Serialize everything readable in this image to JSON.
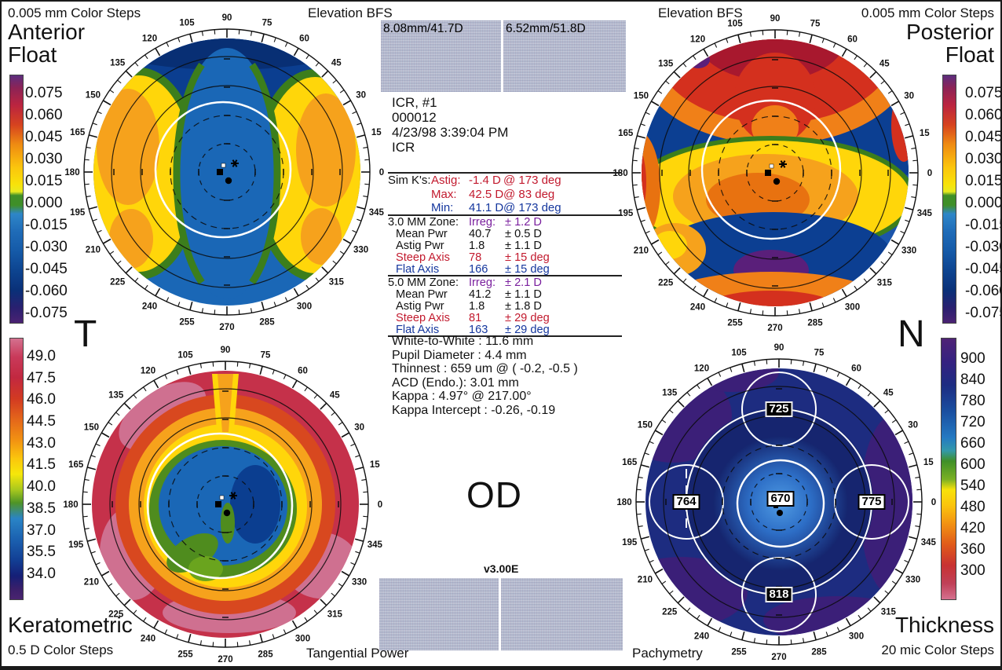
{
  "report": {
    "eye": "OD",
    "version": "v3.00E",
    "patient": [
      "ICR, #1",
      "000012",
      "4/23/98 3:39:04 PM",
      "ICR"
    ]
  },
  "quadrants": {
    "anterior": {
      "steps": "0.005 mm Color Steps",
      "title1": "Anterior",
      "title2": "Float",
      "map_label": "Elevation BFS",
      "side_letter": "T"
    },
    "posterior": {
      "steps": "0.005 mm Color Steps",
      "title1": "Posterior",
      "title2": "Float",
      "map_label": "Elevation BFS",
      "side_letter": "N"
    },
    "keratometric": {
      "title": "Keratometric",
      "steps": "0.5 D Color Steps",
      "map_label": "Tangential Power"
    },
    "thickness": {
      "title": "Thickness",
      "steps": "20 mic Color Steps",
      "map_label": "Pachymetry"
    }
  },
  "bfs": {
    "left": "8.08mm/41.7D",
    "right": "6.52mm/51.8D"
  },
  "scales": {
    "elevation": [
      "0.075",
      "0.060",
      "0.045",
      "0.030",
      "0.015",
      "0.000",
      "-0.015",
      "-0.030",
      "-0.045",
      "-0.060",
      "-0.075"
    ],
    "keratometric": [
      "49.0",
      "47.5",
      "46.0",
      "44.5",
      "43.0",
      "41.5",
      "40.0",
      "38.5",
      "37.0",
      "35.5",
      "34.0"
    ],
    "thickness": [
      "900",
      "840",
      "780",
      "720",
      "660",
      "600",
      "540",
      "480",
      "420",
      "360",
      "300"
    ]
  },
  "stats": {
    "irreg_label": "Irreg:",
    "simk": [
      {
        "a": "Sim K's:",
        "b": "Astig:",
        "v": "-1.4 D",
        "d": "@ 173 deg",
        "cls": "red"
      },
      {
        "a": "",
        "b": "Max:",
        "v": "42.5 D",
        "d": "@ 83 deg",
        "cls": "red"
      },
      {
        "a": "",
        "b": "Min:",
        "v": "41.1 D",
        "d": "@ 173 deg",
        "cls": "blue"
      }
    ],
    "zones": [
      {
        "title": "3.0 MM Zone:",
        "irreg": "± 1.2 D",
        "rows": [
          {
            "l": "Mean Pwr",
            "v": "40.7",
            "t": "± 0.5 D",
            "cls": "black"
          },
          {
            "l": "Astig Pwr",
            "v": "1.8",
            "t": "± 1.1 D",
            "cls": "black"
          },
          {
            "l": "Steep Axis",
            "v": "78",
            "t": "± 15 deg",
            "cls": "red"
          },
          {
            "l": "Flat Axis",
            "v": "166",
            "t": "± 15 deg",
            "cls": "blue"
          }
        ]
      },
      {
        "title": "5.0 MM Zone:",
        "irreg": "± 2.1 D",
        "rows": [
          {
            "l": "Mean Pwr",
            "v": "41.2",
            "t": "± 1.1 D",
            "cls": "black"
          },
          {
            "l": "Astig Pwr",
            "v": "1.8",
            "t": "± 1.8 D",
            "cls": "black"
          },
          {
            "l": "Steep Axis",
            "v": "81",
            "t": "± 29 deg",
            "cls": "red"
          },
          {
            "l": "Flat Axis",
            "v": "163",
            "t": "± 29 deg",
            "cls": "blue"
          }
        ]
      }
    ],
    "info": [
      "White-to-White : 11.6 mm",
      "Pupil Diameter :  4.4 mm",
      "Thinnest : 659 um @ ( -0.2, -0.5 )",
      "ACD (Endo.): 3.01 mm",
      "Kappa : 4.97° @ 217.00°",
      "Kappa Intercept : -0.26, -0.19"
    ]
  },
  "pachymetry_values": {
    "top": "725",
    "left": "764",
    "center": "670",
    "right": "775",
    "bottom": "818"
  },
  "map_angles": [
    0,
    15,
    30,
    45,
    60,
    75,
    90,
    105,
    120,
    135,
    150,
    165,
    180,
    195,
    210,
    225,
    240,
    255,
    270,
    285,
    300,
    315,
    330,
    345
  ],
  "chart_data": [
    {
      "type": "heatmap",
      "title": "Anterior Float (Elevation BFS)",
      "units": "mm",
      "color_step": 0.005,
      "scale_ticks": [
        0.075,
        0.06,
        0.045,
        0.03,
        0.015,
        0.0,
        -0.015,
        -0.03,
        -0.045,
        -0.06,
        -0.075
      ],
      "best_fit_sphere": "8.08mm/41.7D",
      "pattern": "blue (below BFS) vertical channel and superior zone; elevated yellow-orange lobes temporally and nasally with green zero-transition borders; white pupil outline; polar grid 0-345 deg"
    },
    {
      "type": "heatmap",
      "title": "Posterior Float (Elevation BFS)",
      "units": "mm",
      "color_step": 0.005,
      "scale_ticks": [
        0.075,
        0.06,
        0.045,
        0.03,
        0.015,
        0.0,
        -0.015,
        -0.03,
        -0.045,
        -0.06,
        -0.075
      ],
      "best_fit_sphere": "6.52mm/51.8D",
      "pattern": "elevated red/orange superior cap, depressed dark-blue oblique bands, elevated yellow-orange horizontal central band, dark-blue inferior band with purple depression, orange/red inferior rim"
    },
    {
      "type": "heatmap",
      "title": "Keratometric (Tangential Power)",
      "units": "D",
      "color_step": 0.5,
      "scale_ticks": [
        49.0,
        47.5,
        46.0,
        44.5,
        43.0,
        41.5,
        40.0,
        38.5,
        37.0,
        35.5,
        34.0
      ],
      "sim_k": {
        "astig_D": -1.4,
        "astig_axis_deg": 173,
        "max_D": 42.5,
        "max_axis_deg": 83,
        "min_D": 41.1,
        "min_axis_deg": 173
      },
      "pattern": "steep red/crimson periphery with pink patches, orange and yellow mid-peripheral rings, flat blue central zone with green transitions, white pupil outline"
    },
    {
      "type": "heatmap",
      "title": "Thickness (Pachymetry)",
      "units": "um",
      "color_step": 20,
      "scale_ticks": [
        900,
        840,
        780,
        720,
        660,
        600,
        540,
        480,
        420,
        360,
        300
      ],
      "point_values": {
        "center": 670,
        "superior": 725,
        "temporal": 764,
        "nasal": 775,
        "inferior": 818
      },
      "thinnest": {
        "value_um": 659,
        "x": -0.2,
        "y": -0.5
      },
      "pattern": "dark navy cornea, brighter blue (thinner) center, purple (thickest) periphery, five white sampling circles with values"
    }
  ]
}
